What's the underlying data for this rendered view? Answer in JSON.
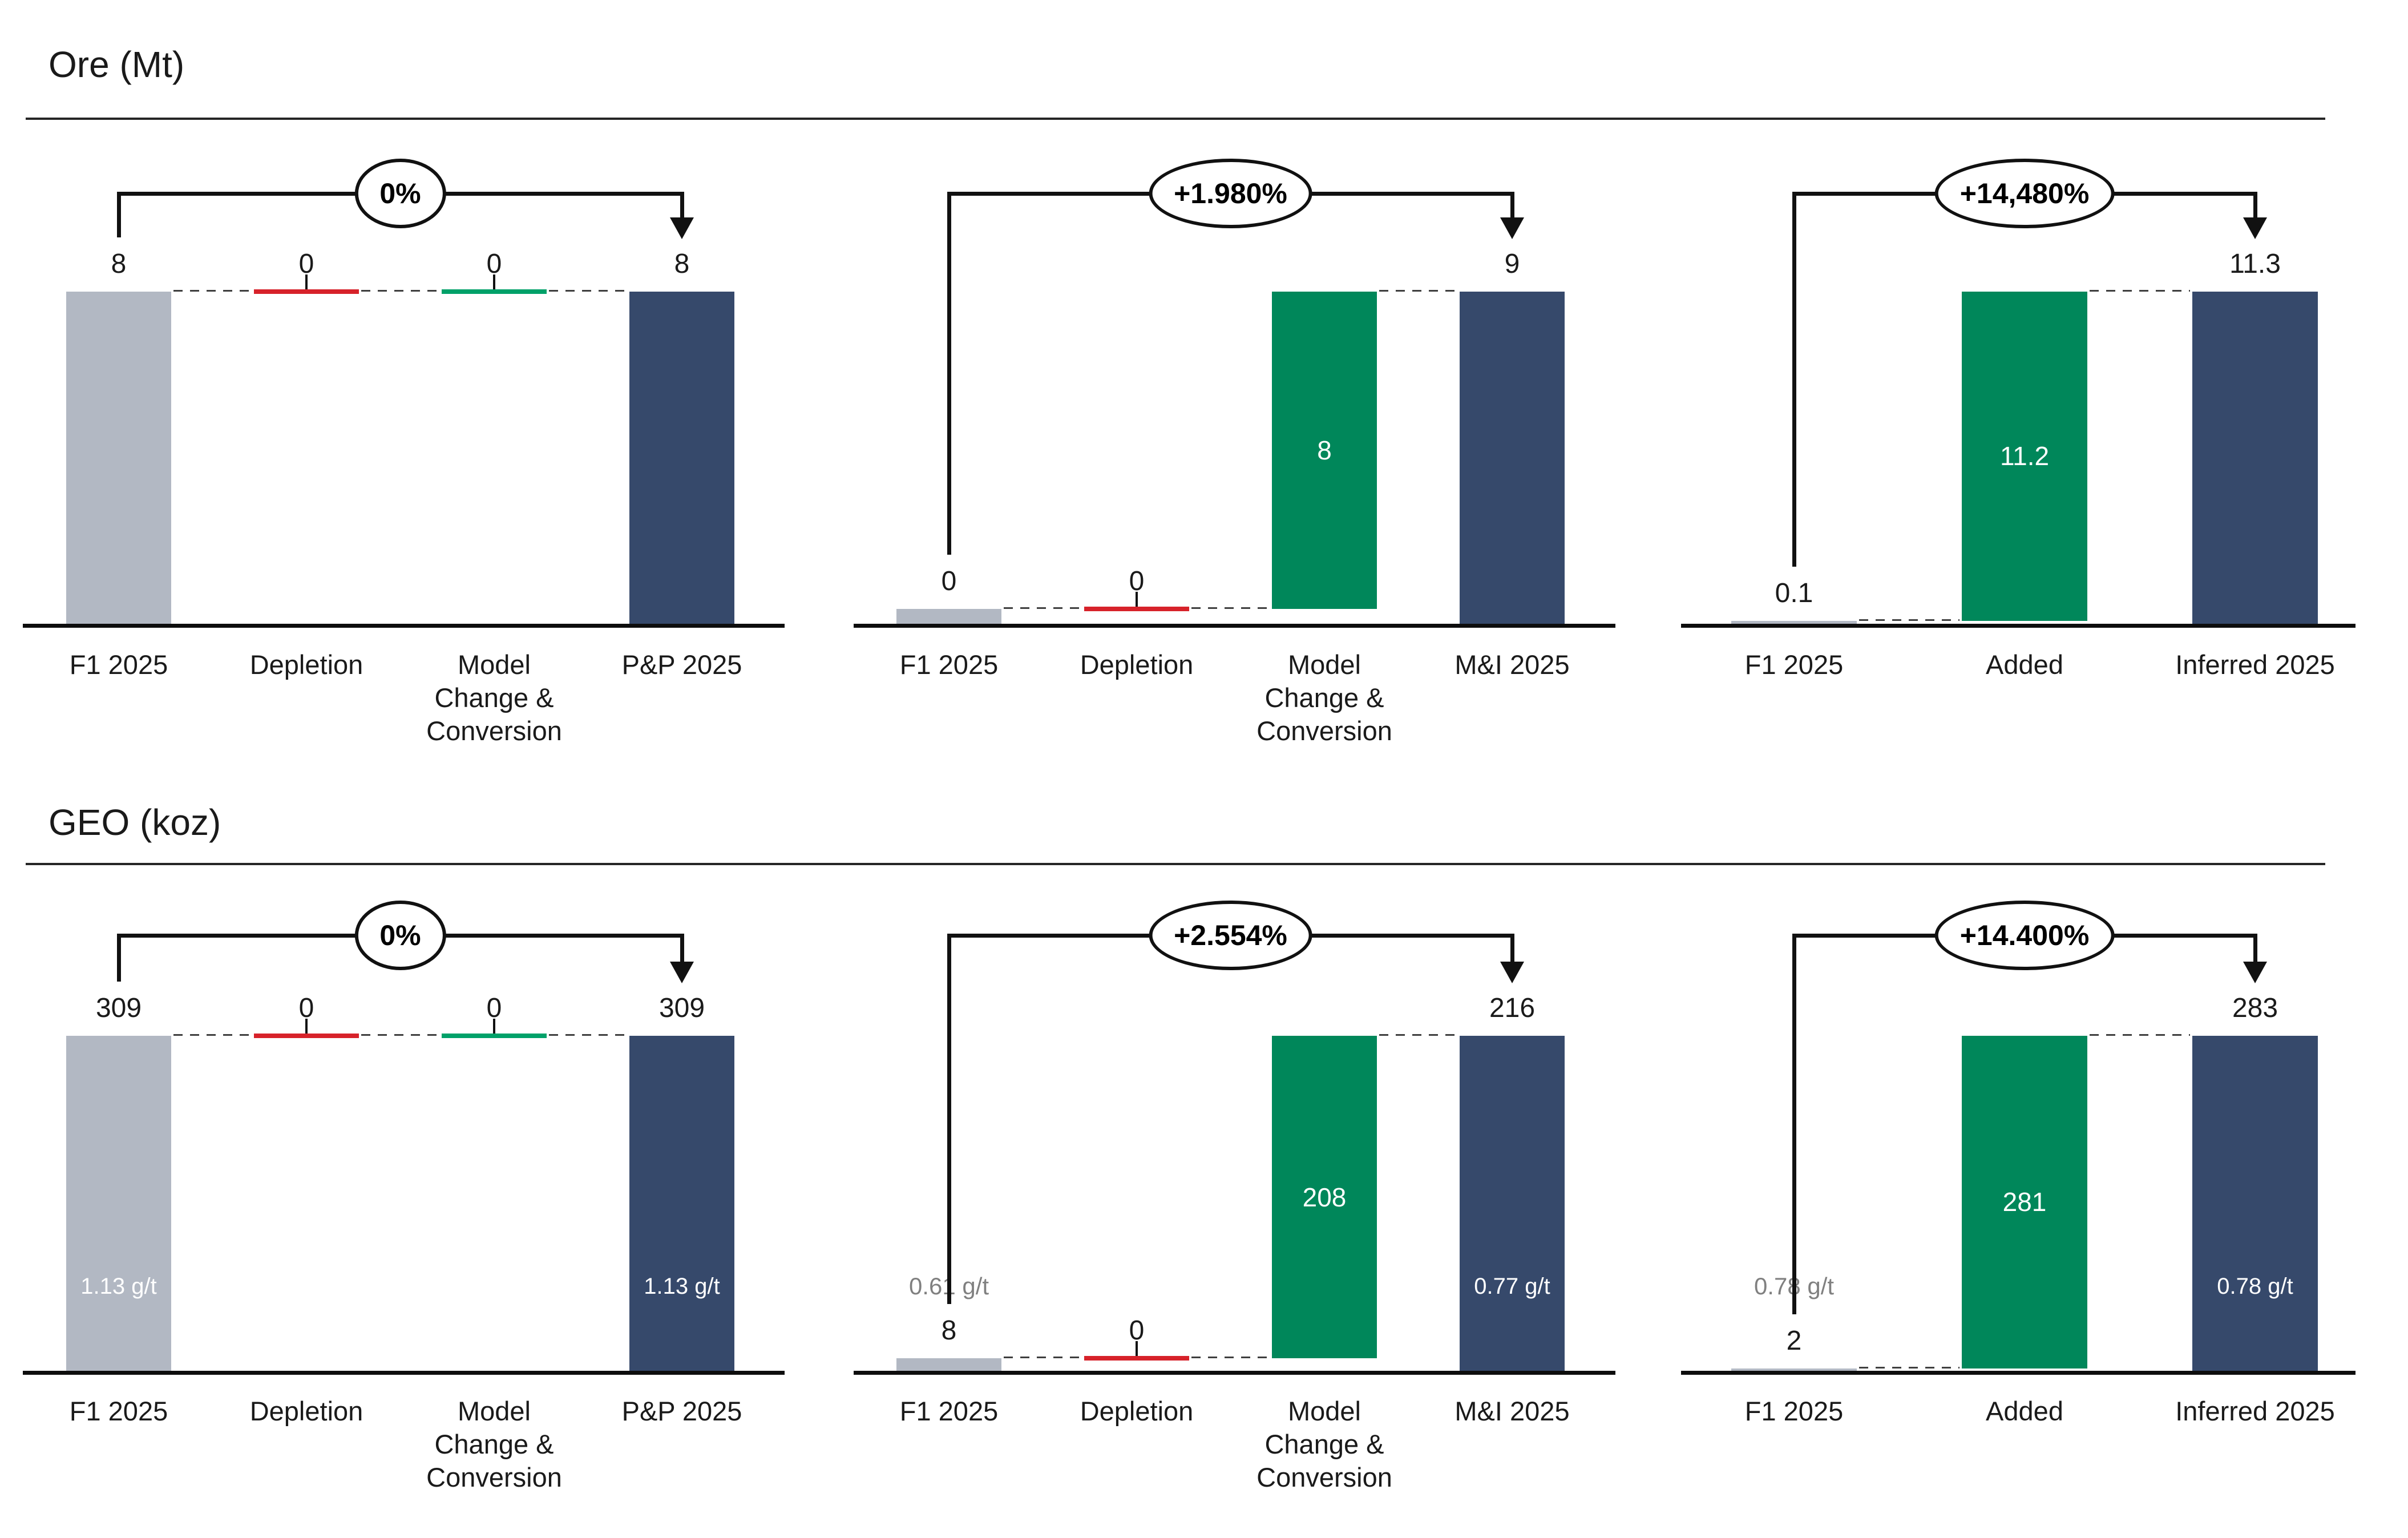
{
  "sections": [
    {
      "title": "Ore (Mt)"
    },
    {
      "title": "GEO (koz)"
    }
  ],
  "colors": {
    "bar_gray": "#b2b8c3",
    "bar_navy": "#36496b",
    "bar_green": "#00875a",
    "depletion_red": "#d7222a",
    "model_change_green": "#00a169",
    "text": "#1a1a1a",
    "grade_gray": "#808080",
    "grade_white": "#ffffff"
  },
  "chart_data": [
    {
      "type": "bar",
      "subtype": "waterfall",
      "section": "Ore (Mt)",
      "badge": "0%",
      "ymax": 8,
      "bars": [
        {
          "category_lines": [
            "F1 2025"
          ],
          "value": 8,
          "top_label": "8",
          "from": 0,
          "to": 8,
          "role": "total",
          "color": "gray"
        },
        {
          "category_lines": [
            "Depletion"
          ],
          "value": 0,
          "top_label": "0",
          "from": 8,
          "to": 8,
          "role": "delta",
          "color": "red"
        },
        {
          "category_lines": [
            "Model",
            "Change &",
            "Conversion"
          ],
          "value": 0,
          "top_label": "0",
          "from": 8,
          "to": 8,
          "role": "delta",
          "color": "green"
        },
        {
          "category_lines": [
            "P&P 2025"
          ],
          "value": 8,
          "top_label": "8",
          "from": 0,
          "to": 8,
          "role": "total",
          "color": "navy"
        }
      ]
    },
    {
      "type": "bar",
      "subtype": "waterfall",
      "section": "Ore (Mt)",
      "badge": "+1.980%",
      "ymax": 9,
      "bars": [
        {
          "category_lines": [
            "F1 2025"
          ],
          "value": 0,
          "top_label": "0",
          "from": 0,
          "to": 0.4,
          "role": "total",
          "color": "gray"
        },
        {
          "category_lines": [
            "Depletion"
          ],
          "value": 0,
          "top_label": "0",
          "from": 0.4,
          "to": 0.4,
          "role": "delta",
          "color": "red"
        },
        {
          "category_lines": [
            "Model",
            "Change &",
            "Conversion"
          ],
          "value": 8,
          "inside_label": "8",
          "from": 0.4,
          "to": 9,
          "role": "delta",
          "color": "green"
        },
        {
          "category_lines": [
            "M&I 2025"
          ],
          "value": 9,
          "top_label": "9",
          "from": 0,
          "to": 9,
          "role": "total",
          "color": "navy"
        }
      ]
    },
    {
      "type": "bar",
      "subtype": "waterfall",
      "section": "Ore (Mt)",
      "badge": "+14,480%",
      "ymax": 11.3,
      "bars": [
        {
          "category_lines": [
            "F1 2025"
          ],
          "value": 0.1,
          "top_label": "0.1",
          "from": 0,
          "to": 0.1,
          "role": "total",
          "color": "gray"
        },
        {
          "category_lines": [
            "Added"
          ],
          "value": 11.2,
          "inside_label": "11.2",
          "from": 0.1,
          "to": 11.3,
          "role": "delta",
          "color": "green"
        },
        {
          "category_lines": [
            "Inferred 2025"
          ],
          "value": 11.3,
          "top_label": "11.3",
          "from": 0,
          "to": 11.3,
          "role": "total",
          "color": "navy"
        }
      ]
    },
    {
      "type": "bar",
      "subtype": "waterfall",
      "section": "GEO (koz)",
      "badge": "0%",
      "ymax": 309,
      "bars": [
        {
          "category_lines": [
            "F1 2025"
          ],
          "value": 309,
          "top_label": "309",
          "grade_label": "1.13 g/t",
          "from": 0,
          "to": 309,
          "role": "total",
          "color": "gray"
        },
        {
          "category_lines": [
            "Depletion"
          ],
          "value": 0,
          "top_label": "0",
          "from": 309,
          "to": 309,
          "role": "delta",
          "color": "red"
        },
        {
          "category_lines": [
            "Model",
            "Change &",
            "Conversion"
          ],
          "value": 0,
          "top_label": "0",
          "from": 309,
          "to": 309,
          "role": "delta",
          "color": "green"
        },
        {
          "category_lines": [
            "P&P 2025"
          ],
          "value": 309,
          "top_label": "309",
          "grade_label": "1.13 g/t",
          "from": 0,
          "to": 309,
          "role": "total",
          "color": "navy"
        }
      ]
    },
    {
      "type": "bar",
      "subtype": "waterfall",
      "section": "GEO (koz)",
      "badge": "+2.554%",
      "ymax": 216,
      "bars": [
        {
          "category_lines": [
            "F1 2025"
          ],
          "value": 8,
          "top_label": "8",
          "aux_grade_label": "0.61 g/t",
          "from": 0,
          "to": 8,
          "role": "total",
          "color": "gray"
        },
        {
          "category_lines": [
            "Depletion"
          ],
          "value": 0,
          "top_label": "0",
          "from": 8,
          "to": 8,
          "role": "delta",
          "color": "red"
        },
        {
          "category_lines": [
            "Model",
            "Change &",
            "Conversion"
          ],
          "value": 208,
          "inside_label": "208",
          "from": 8,
          "to": 216,
          "role": "delta",
          "color": "green"
        },
        {
          "category_lines": [
            "M&I 2025"
          ],
          "value": 216,
          "top_label": "216",
          "grade_label": "0.77 g/t",
          "from": 0,
          "to": 216,
          "role": "total",
          "color": "navy"
        }
      ]
    },
    {
      "type": "bar",
      "subtype": "waterfall",
      "section": "GEO (koz)",
      "badge": "+14.400%",
      "ymax": 283,
      "bars": [
        {
          "category_lines": [
            "F1 2025"
          ],
          "value": 2,
          "top_label": "2",
          "aux_grade_label": "0.78 g/t",
          "from": 0,
          "to": 2,
          "role": "total",
          "color": "gray"
        },
        {
          "category_lines": [
            "Added"
          ],
          "value": 281,
          "inside_label": "281",
          "from": 2,
          "to": 283,
          "role": "delta",
          "color": "green"
        },
        {
          "category_lines": [
            "Inferred 2025"
          ],
          "value": 283,
          "top_label": "283",
          "grade_label": "0.78 g/t",
          "from": 0,
          "to": 283,
          "role": "total",
          "color": "navy"
        }
      ]
    }
  ]
}
